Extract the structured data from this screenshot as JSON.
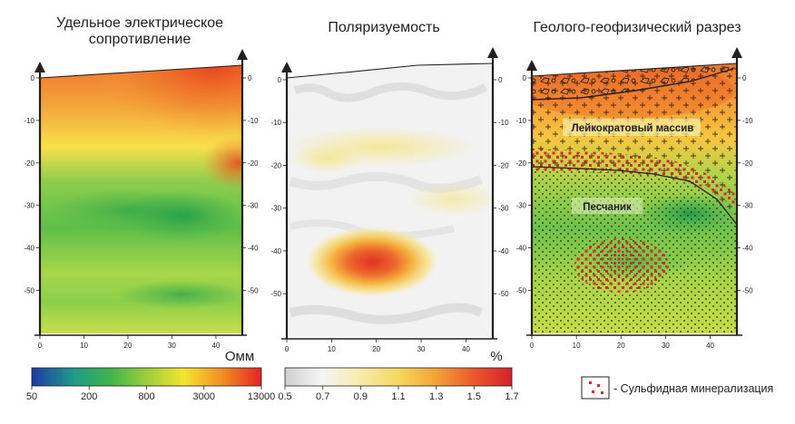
{
  "panels": [
    {
      "title_lines": [
        "Удельное электрическое",
        "сопротивление"
      ]
    },
    {
      "title_lines": [
        "Поляризуемость"
      ]
    },
    {
      "title_lines": [
        "Геолого-геофизический разрез"
      ]
    }
  ],
  "units": {
    "resistivity": "Омм",
    "polarizability": "%"
  },
  "labels": {
    "massif": "Лейкократовый массив",
    "sandstone": "Песчаник"
  },
  "legend": {
    "sulfide": "- Сульфидная минерализация"
  },
  "colors": {
    "res_high": "#ee4f1e",
    "res_mid": "#f2d84a",
    "res_low": "#3db04a",
    "pol_high": "#e53a22",
    "pol_bg": "#f1f1f1"
  },
  "chart_data": [
    {
      "type": "heatmap",
      "title": "Удельное электрическое сопротивление",
      "xlabel": "",
      "ylabel": "",
      "x_ticks": [
        "0",
        "10",
        "20",
        "30",
        "40"
      ],
      "y_ticks": [
        "0",
        "-10",
        "-20",
        "-30",
        "-40",
        "-50"
      ],
      "xlim": [
        0,
        46
      ],
      "ylim": [
        -58,
        2
      ],
      "colorbar": {
        "label": "Омм",
        "ticks": [
          "50",
          "200",
          "800",
          "3000",
          "13000"
        ],
        "colors": [
          "#1e3ea0",
          "#1faa6e",
          "#55c043",
          "#f3e531",
          "#f08a22",
          "#e42325"
        ]
      },
      "surface_right_y": 3
    },
    {
      "type": "heatmap",
      "title": "Поляризуемость",
      "x_ticks": [
        "0",
        "10",
        "20",
        "30",
        "40"
      ],
      "y_ticks": [
        "0",
        "-10",
        "-20",
        "-30",
        "-40",
        "-50"
      ],
      "xlim": [
        0,
        46
      ],
      "ylim": [
        -58,
        2
      ],
      "colorbar": {
        "label": "%",
        "ticks": [
          "0.5",
          "0.7",
          "0.9",
          "1.1",
          "1.3",
          "1.5",
          "1.7"
        ],
        "colors": [
          "#dcdcdc",
          "#f4f4f4",
          "#f6eeb0",
          "#f7d25a",
          "#f29b33",
          "#e9432a",
          "#d91f26"
        ]
      },
      "anomaly_center": [
        20,
        -42
      ],
      "surface_right_y": 3
    },
    {
      "type": "heatmap",
      "title": "Геолого-геофизический разрез",
      "x_ticks": [
        "0",
        "10",
        "20",
        "30",
        "40"
      ],
      "y_ticks": [
        "0",
        "-10",
        "-20",
        "-30",
        "-40",
        "-50"
      ],
      "xlim": [
        0,
        46
      ],
      "ylim": [
        -58,
        2
      ],
      "surface_right_y": 3
    }
  ]
}
